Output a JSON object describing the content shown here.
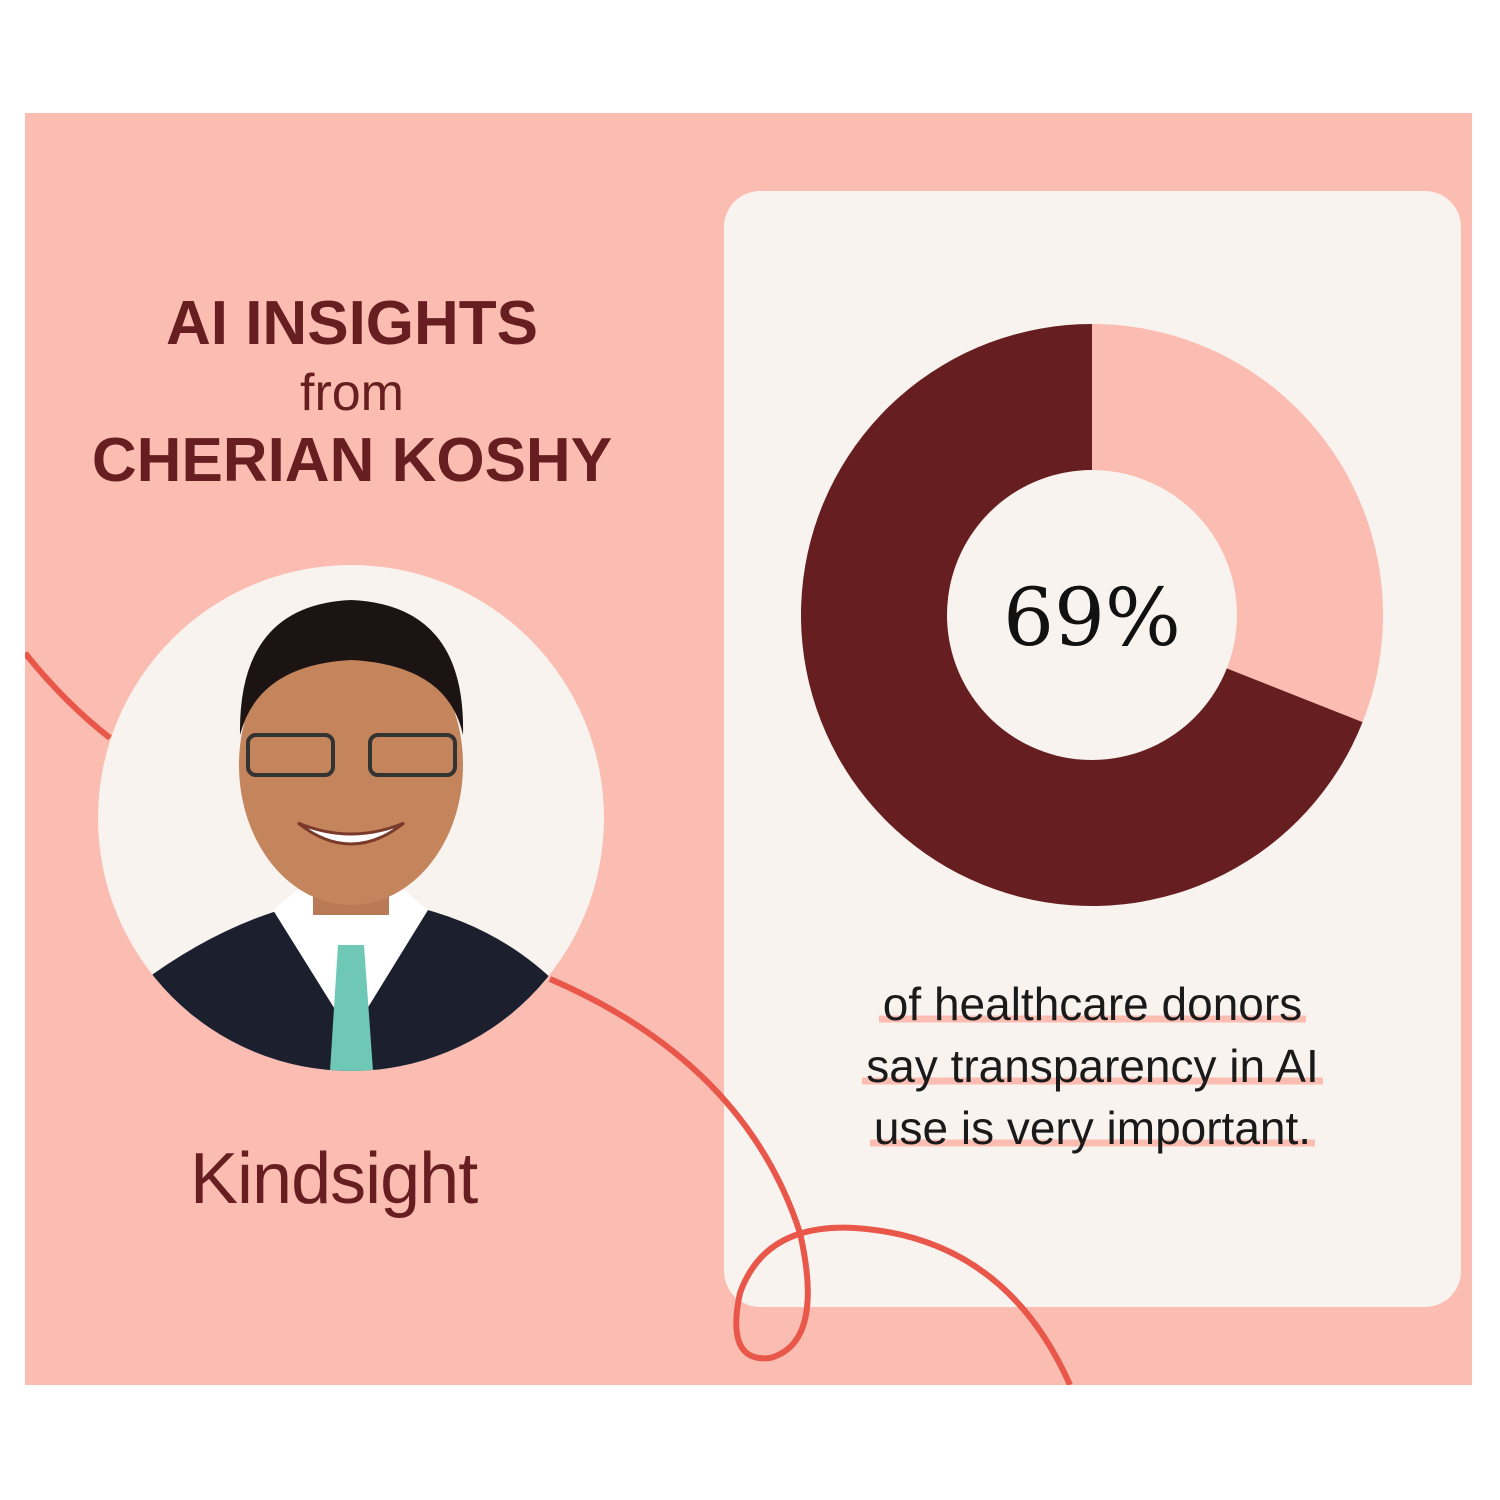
{
  "header": {
    "line1": "AI INSIGHTS",
    "line2": "from",
    "line3": "CHERIAN KOSHY"
  },
  "logo": {
    "text": "Kindsight"
  },
  "caption": {
    "lines": [
      "of healthcare donors",
      "say transparency in AI",
      "use is very important."
    ]
  },
  "colors": {
    "background": "#FBBCB1",
    "dark": "#661E20",
    "card": "#F9F3EF",
    "accent_curve": "#E9574A"
  },
  "chart_data": {
    "type": "pie",
    "donut": true,
    "center_label": "69%",
    "values": [
      69,
      31
    ],
    "colors": [
      "#661E20",
      "#FBBCB1"
    ]
  }
}
